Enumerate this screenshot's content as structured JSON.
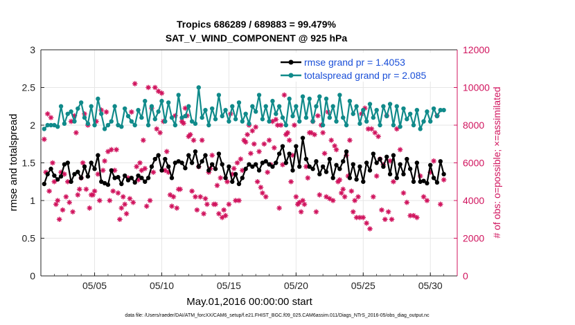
{
  "chart_data": {
    "type": "line",
    "title_line1": "Tropics 686289 / 689883 = 99.479%",
    "title_line2": "SAT_V_WIND_COMPONENT @ 925 hPa",
    "xlabel": "May.01,2016 00:00:00 start",
    "ylabel_left": "rmse and totalspread",
    "ylabel_right": "# of obs: o=possible; ×=assimilated",
    "footer": "data file: /Users/raeder/DAI/ATM_forcXX/CAM6_setup/f.e21.FHIST_BGC.f09_025.CAM6assim.011/Diags_NTrS_2016-05/obs_diag_output.nc",
    "xlim": [
      1,
      32
    ],
    "ylim_left": [
      0,
      3
    ],
    "ylim_right": [
      0,
      12000
    ],
    "x_ticks": [
      5,
      10,
      15,
      20,
      25,
      30
    ],
    "x_tick_labels": [
      "05/05",
      "05/10",
      "05/15",
      "05/20",
      "05/25",
      "05/30"
    ],
    "y_ticks_left": [
      "0",
      "0.5",
      "1",
      "1.5",
      "2",
      "2.5",
      "3"
    ],
    "y_ticks_right": [
      "0",
      "2000",
      "4000",
      "6000",
      "8000",
      "10000",
      "12000"
    ],
    "colors": {
      "rmse": "#000000",
      "spread": "#108a8a",
      "obs": "#d0135d",
      "grid": "#e6e6e6",
      "legend_text": "#1a4fd8"
    },
    "series": [
      {
        "name": "rmse grand pr = 1.4053",
        "axis": "left",
        "x_start": 1.25,
        "x_step": 0.25,
        "values": [
          1.22,
          1.35,
          1.42,
          1.33,
          1.28,
          1.32,
          1.48,
          1.5,
          1.25,
          1.35,
          1.38,
          1.3,
          1.45,
          1.32,
          1.5,
          1.42,
          1.6,
          1.25,
          1.23,
          1.21,
          1.4,
          1.3,
          1.31,
          1.22,
          1.33,
          1.27,
          1.3,
          1.24,
          1.33,
          1.3,
          1.25,
          1.3,
          1.45,
          1.55,
          1.6,
          1.4,
          1.55,
          1.45,
          1.3,
          1.5,
          1.52,
          1.5,
          1.43,
          1.6,
          1.5,
          1.65,
          1.45,
          1.52,
          1.6,
          1.4,
          1.48,
          1.42,
          1.62,
          1.48,
          1.3,
          1.45,
          1.25,
          1.35,
          1.22,
          1.3,
          1.42,
          1.48,
          1.45,
          1.48,
          1.4,
          1.5,
          1.52,
          1.48,
          1.45,
          1.5,
          1.62,
          1.72,
          1.5,
          1.62,
          1.4,
          1.72,
          1.45,
          1.83,
          1.55,
          1.45,
          1.42,
          1.52,
          1.35,
          1.45,
          1.38,
          1.55,
          1.3,
          1.47,
          1.42,
          1.52,
          1.65,
          1.3,
          1.48,
          1.28,
          1.45,
          1.25,
          1.5,
          1.4,
          1.62,
          1.5,
          1.55,
          1.45,
          1.58,
          1.35,
          1.6,
          1.3,
          1.48,
          1.35,
          1.55,
          1.42,
          1.25,
          1.5,
          1.25,
          1.26,
          1.23,
          1.47,
          1.3,
          1.24,
          1.52,
          1.35
        ]
      },
      {
        "name": "totalspread grand pr = 2.085",
        "axis": "left",
        "x_start": 1.25,
        "x_step": 0.25,
        "values": [
          1.95,
          2.0,
          2.0,
          2.0,
          1.98,
          2.25,
          2.02,
          2.15,
          2.18,
          2.05,
          2.22,
          2.3,
          2.1,
          2.02,
          2.25,
          2.0,
          2.35,
          2.15,
          1.95,
          2.0,
          2.05,
          2.25,
          2.0,
          1.98,
          2.22,
          2.12,
          2.05,
          2.0,
          2.2,
          2.1,
          2.32,
          2.0,
          2.25,
          2.08,
          2.18,
          2.32,
          2.05,
          2.3,
          2.1,
          2.0,
          2.4,
          2.1,
          2.12,
          2.25,
          2.05,
          2.02,
          2.5,
          2.1,
          2.2,
          2.0,
          2.22,
          2.08,
          2.4,
          2.12,
          2.2,
          2.05,
          2.25,
          2.08,
          2.3,
          2.05,
          2.15,
          2.02,
          2.25,
          2.18,
          2.4,
          2.08,
          2.25,
          2.05,
          2.32,
          2.15,
          2.25,
          2.1,
          2.0,
          2.35,
          2.12,
          2.25,
          2.05,
          2.38,
          2.1,
          2.35,
          2.05,
          2.25,
          2.38,
          2.0,
          2.35,
          2.1,
          2.25,
          2.05,
          2.4,
          2.1,
          2.0,
          2.32,
          2.15,
          2.25,
          2.02,
          2.2,
          2.05,
          2.28,
          2.1,
          2.2,
          2.0,
          2.25,
          2.12,
          2.28,
          2.0,
          2.25,
          1.98,
          2.22,
          2.08,
          2.15,
          2.0,
          2.2,
          1.95,
          2.05,
          2.18,
          2.05,
          2.22,
          2.12,
          2.2,
          2.2
        ]
      },
      {
        "name": "# assimilated observations",
        "axis": "right",
        "x_start": 1.25,
        "x_step": 0.25,
        "values": [
          7250,
          8600,
          8400,
          5000,
          4000,
          5500,
          5400,
          5000,
          8200,
          8500,
          4300,
          5200,
          8600,
          8000,
          4300,
          4500,
          5400,
          8800,
          6100,
          6600,
          6700,
          5600,
          4400,
          3600,
          3800,
          5200,
          8700,
          10200,
          5100,
          5600,
          5700,
          10000,
          8900,
          10000,
          9800,
          9700,
          5600,
          5500,
          3700,
          8500,
          4600,
          8200,
          8900,
          7400,
          4500,
          4200,
          5800,
          7200,
          4100,
          5500,
          6400,
          3800,
          3300,
          3100,
          3200,
          3800,
          5400,
          4000,
          4000,
          5600,
          7100,
          8000,
          7700,
          7900,
          6600,
          4400,
          4200,
          7200,
          8200,
          8300,
          3600,
          5900,
          7500,
          7200,
          6400,
          4200,
          3900,
          4000,
          5800,
          7600,
          8200,
          3400,
          4300,
          7600,
          4200,
          4100,
          4000,
          6700,
          5100,
          4600,
          6400,
          7200,
          3400,
          3100,
          3100,
          3100,
          2800,
          2500,
          4200,
          5300,
          6200,
          5900,
          8500,
          6100,
          5000,
          7800,
          6700,
          4400,
          3900,
          3200,
          3200,
          3100,
          5300,
          4200,
          4000,
          5500,
          6100,
          8500,
          3800,
          5100,
          5500,
          4500,
          6000,
          3800,
          3000,
          3500,
          4200,
          3900,
          3400,
          7600,
          4600,
          6000,
          4600,
          3600,
          4300,
          8200,
          4000,
          5600,
          8700,
          4000,
          4500,
          6700,
          3000,
          4200,
          3300,
          4100,
          3900,
          5800,
          6000,
          7200,
          3700,
          4000,
          5500,
          7800,
          7600,
          8200,
          6600,
          4300,
          4200,
          3600,
          4600,
          8100,
          8500,
          7500,
          7200,
          3500,
          4200,
          3300,
          3800,
          5700,
          3800,
          4800,
          5200,
          3500,
          5000,
          8600,
          5700,
          6000,
          6200,
          7200,
          7500,
          6500,
          7000,
          5000,
          4700,
          7000,
          5500,
          5900,
          6800,
          8000,
          8000,
          9600,
          7600,
          5000,
          8000,
          3800,
          3400,
          3800,
          5200,
          7600,
          7500,
          8500,
          8000,
          6500,
          8700,
          7200,
          6900,
          5000,
          4400,
          4200,
          5300,
          4500,
          4000,
          4200,
          8600,
          8900,
          7800,
          7800,
          7600,
          7400,
          3500,
          3000,
          3400,
          3000
        ]
      }
    ],
    "legend": [
      {
        "label": "rmse grand pr = 1.4053",
        "series": "rmse"
      },
      {
        "label": "totalspread grand pr = 2.085",
        "series": "spread"
      }
    ]
  }
}
